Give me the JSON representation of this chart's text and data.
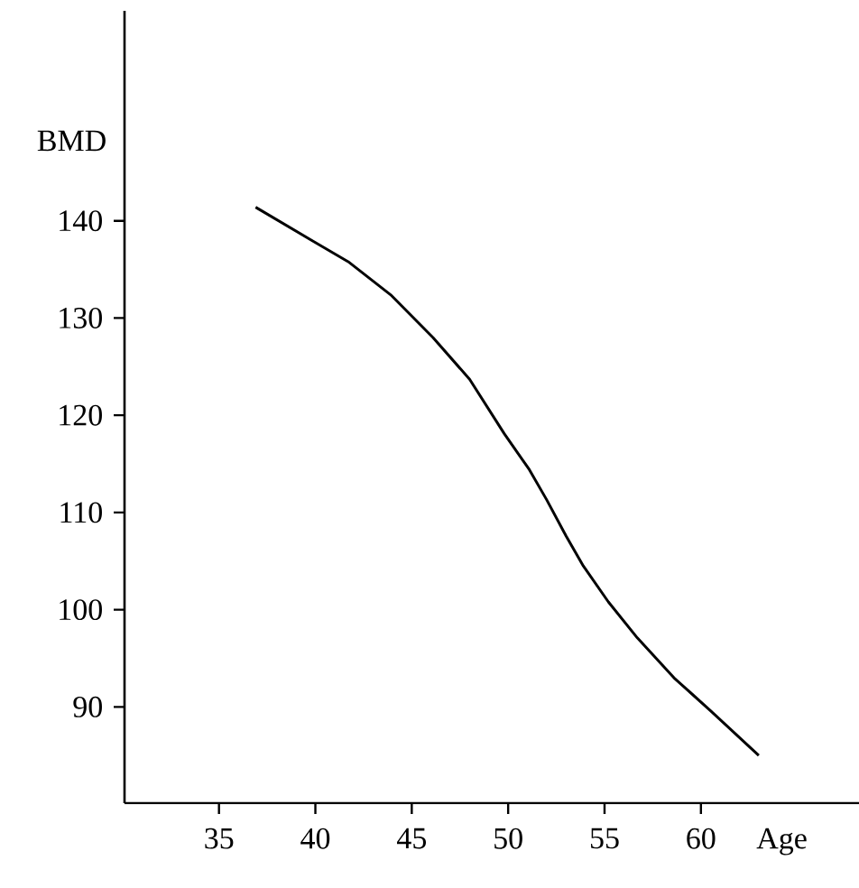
{
  "chart_data": {
    "type": "line",
    "xlabel": "Age",
    "ylabel": "BMD",
    "x": [
      36.9,
      39.8,
      41.7,
      43.9,
      46.1,
      48.0,
      49.8,
      51.1,
      52.0,
      53.0,
      53.9,
      55.2,
      56.7,
      58.6,
      60.5,
      63.0
    ],
    "series": [
      {
        "color": "#000000",
        "values": [
          141.4,
          138.0,
          135.8,
          132.4,
          128.0,
          123.7,
          118.1,
          114.4,
          111.3,
          107.6,
          104.5,
          100.8,
          97.1,
          93.0,
          89.6,
          85.0
        ]
      }
    ],
    "xlim": [
      30.1,
      68.2
    ],
    "ylim": [
      80.1,
      161.6
    ],
    "xticks": [
      35,
      40,
      45,
      50,
      55,
      60
    ],
    "yticks": [
      90,
      100,
      110,
      120,
      130,
      140
    ],
    "grid": false,
    "marker": "none",
    "line_style": "solid"
  }
}
